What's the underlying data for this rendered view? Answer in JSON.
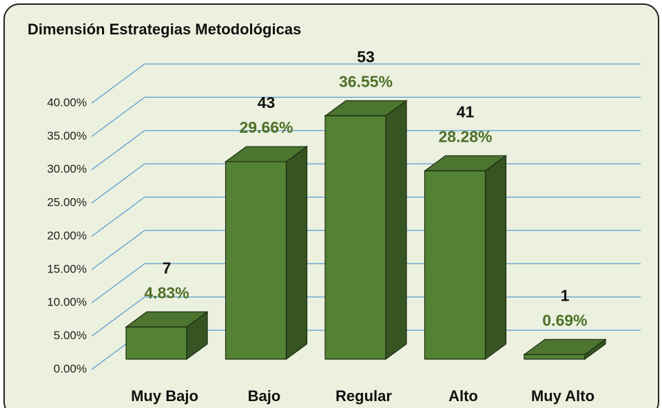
{
  "chart_data": {
    "type": "bar3d",
    "title": "Dimensión Estrategias Metodológicas",
    "categories": [
      "Muy Bajo",
      "Bajo",
      "Regular",
      "Alto",
      "Muy Alto"
    ],
    "values": [
      4.83,
      29.66,
      36.55,
      28.28,
      0.69
    ],
    "value_labels": [
      "4.83%",
      "29.66%",
      "36.55%",
      "28.28%",
      "0.69%"
    ],
    "counts": [
      7,
      43,
      53,
      41,
      1
    ],
    "color": "#548235",
    "ylim": [
      0,
      40
    ],
    "yticks": [
      {
        "value": 0,
        "label": "0.00%"
      },
      {
        "value": 5,
        "label": "5.00%"
      },
      {
        "value": 10,
        "label": "10.00%"
      },
      {
        "value": 15,
        "label": "15.00%"
      },
      {
        "value": 20,
        "label": "20.00%"
      },
      {
        "value": 25,
        "label": "25.00%"
      },
      {
        "value": 30,
        "label": "30.00%"
      },
      {
        "value": 35,
        "label": "35.00%"
      },
      {
        "value": 40,
        "label": "40.00%"
      }
    ],
    "grid": true
  }
}
